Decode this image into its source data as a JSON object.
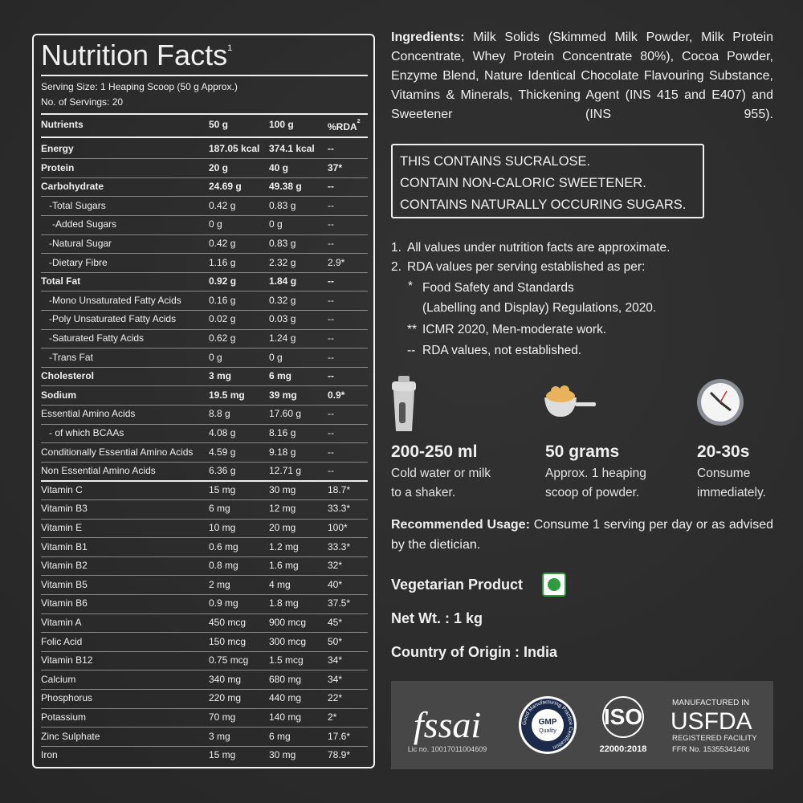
{
  "nutrition": {
    "title": "Nutrition Facts",
    "title_sup": "1",
    "serving_size": "Serving Size: 1 Heaping Scoop (50 g Approx.)",
    "servings": "No. of Servings: 20",
    "header": [
      "Nutrients",
      "50 g",
      "100 g",
      "%RDA"
    ],
    "header_sup": "2",
    "rows": [
      [
        "Energy",
        "187.05 kcal",
        "374.1 kcal",
        "--"
      ],
      [
        "Protein",
        "20 g",
        "40 g",
        "37*"
      ],
      [
        "Carbohydrate",
        "24.69 g",
        "49.38 g",
        "--"
      ],
      [
        "-Total Sugars",
        "0.42 g",
        "0.83 g",
        "--"
      ],
      [
        "-Added Sugars",
        "0 g",
        "0 g",
        "--"
      ],
      [
        "-Natural Sugar",
        "0.42 g",
        "0.83 g",
        "--"
      ],
      [
        "-Dietary Fibre",
        "1.16 g",
        "2.32 g",
        "2.9*"
      ],
      [
        "Total Fat",
        "0.92 g",
        "1.84 g",
        "--"
      ],
      [
        "-Mono Unsaturated Fatty Acids",
        "0.16 g",
        "0.32 g",
        "--"
      ],
      [
        "-Poly Unsaturated Fatty Acids",
        "0.02 g",
        "0.03 g",
        "--"
      ],
      [
        "-Saturated Fatty Acids",
        "0.62 g",
        "1.24 g",
        "--"
      ],
      [
        "-Trans Fat",
        "0 g",
        "0 g",
        "--"
      ],
      [
        "Cholesterol",
        "3 mg",
        "6 mg",
        "--"
      ],
      [
        "Sodium",
        "19.5 mg",
        "39 mg",
        "0.9*"
      ],
      [
        "Essential Amino Acids",
        "8.8 g",
        "17.60 g",
        "--"
      ],
      [
        "- of which BCAAs",
        "4.08 g",
        "8.16 g",
        "--"
      ],
      [
        "Conditionally Essential Amino Acids",
        "4.59 g",
        "9.18 g",
        "--"
      ],
      [
        "Non Essential Amino Acids",
        "6.36 g",
        "12.71 g",
        "--"
      ],
      [
        "Vitamin C",
        "15 mg",
        "30 mg",
        "18.7*"
      ],
      [
        "Vitamin B3",
        "6 mg",
        "12 mg",
        "33.3*"
      ],
      [
        "Vitamin E",
        "10 mg",
        "20 mg",
        "100*"
      ],
      [
        "Vitamin B1",
        "0.6 mg",
        "1.2 mg",
        "33.3*"
      ],
      [
        "Vitamin B2",
        "0.8 mg",
        "1.6 mg",
        "32*"
      ],
      [
        "Vitamin B5",
        "2 mg",
        "4 mg",
        "40*"
      ],
      [
        "Vitamin B6",
        "0.9 mg",
        "1.8 mg",
        "37.5*"
      ],
      [
        "Vitamin A",
        "450 mcg",
        "900 mcg",
        "45*"
      ],
      [
        "Folic Acid",
        "150 mcg",
        "300 mcg",
        "50*"
      ],
      [
        "Vitamin B12",
        "0.75 mcg",
        "1.5 mcg",
        "34*"
      ],
      [
        "Calcium",
        "340 mg",
        "680 mg",
        "34*"
      ],
      [
        "Phosphorus",
        "220 mg",
        "440 mg",
        "22*"
      ],
      [
        "Potassium",
        "70 mg",
        "140 mg",
        "2*"
      ],
      [
        "Zinc Sulphate",
        "3 mg",
        "6 mg",
        "17.6*"
      ],
      [
        "Iron",
        "15 mg",
        "30 mg",
        "78.9*"
      ]
    ]
  },
  "ingredients": {
    "label": "Ingredients:",
    "text": "Milk Solids (Skimmed Milk Powder, Milk Protein Concentrate, Whey Protein Concentrate 80%), Cocoa Powder, Enzyme Blend, Nature Identical Chocolate Flavouring Substance, Vitamins & Minerals, Thickening Agent (INS 415 and E407) and Sweetener (INS 955)."
  },
  "warning": [
    "THIS CONTAINS SUCRALOSE.",
    "CONTAIN NON-CALORIC SWEETENER.",
    "CONTAINS NATURALLY OCCURING SUGARS."
  ],
  "notes": {
    "items": [
      {
        "marker": "1.",
        "text": "All values under nutrition facts are approximate."
      },
      {
        "marker": "2.",
        "text": "RDA values per serving established as per:"
      }
    ],
    "sub": [
      {
        "marker": "*",
        "lines": [
          "Food Safety and Standards",
          "(Labelling and Display) Regulations, 2020."
        ]
      },
      {
        "marker": "**",
        "lines": [
          "ICMR 2020, Men-moderate work."
        ]
      },
      {
        "marker": "--",
        "lines": [
          "RDA values, not established."
        ]
      }
    ]
  },
  "steps": [
    {
      "heading": "200-250 ml",
      "lines": [
        "Cold water or milk",
        "to a shaker."
      ]
    },
    {
      "heading": "50 grams",
      "lines": [
        "Approx. 1 heaping",
        "scoop of powder."
      ]
    },
    {
      "heading": "20-30s",
      "lines": [
        "Consume",
        "immediately."
      ]
    }
  ],
  "usage": {
    "label": "Recommended Usage:",
    "text": "Consume 1 serving per day or as advised by the dietician."
  },
  "vegetarian": "Vegetarian Product",
  "net_wt": "Net Wt. : 1 kg",
  "origin": "Country of Origin : India",
  "certifications": {
    "fssai": {
      "logo": "fssai",
      "license": "Lic no. 10017011004609"
    },
    "gmp": {
      "ring": "Good Manufacturing Practice Certification",
      "label": [
        "GMP",
        "Quality"
      ]
    },
    "iso": {
      "logo": "ISO",
      "standard": "22000:2018"
    },
    "usfda": {
      "top": "MANUFACTURED IN",
      "logo": "USFDA",
      "registered": "REGISTERED FACILITY",
      "ffr": "FFR No. 15355341406"
    }
  }
}
